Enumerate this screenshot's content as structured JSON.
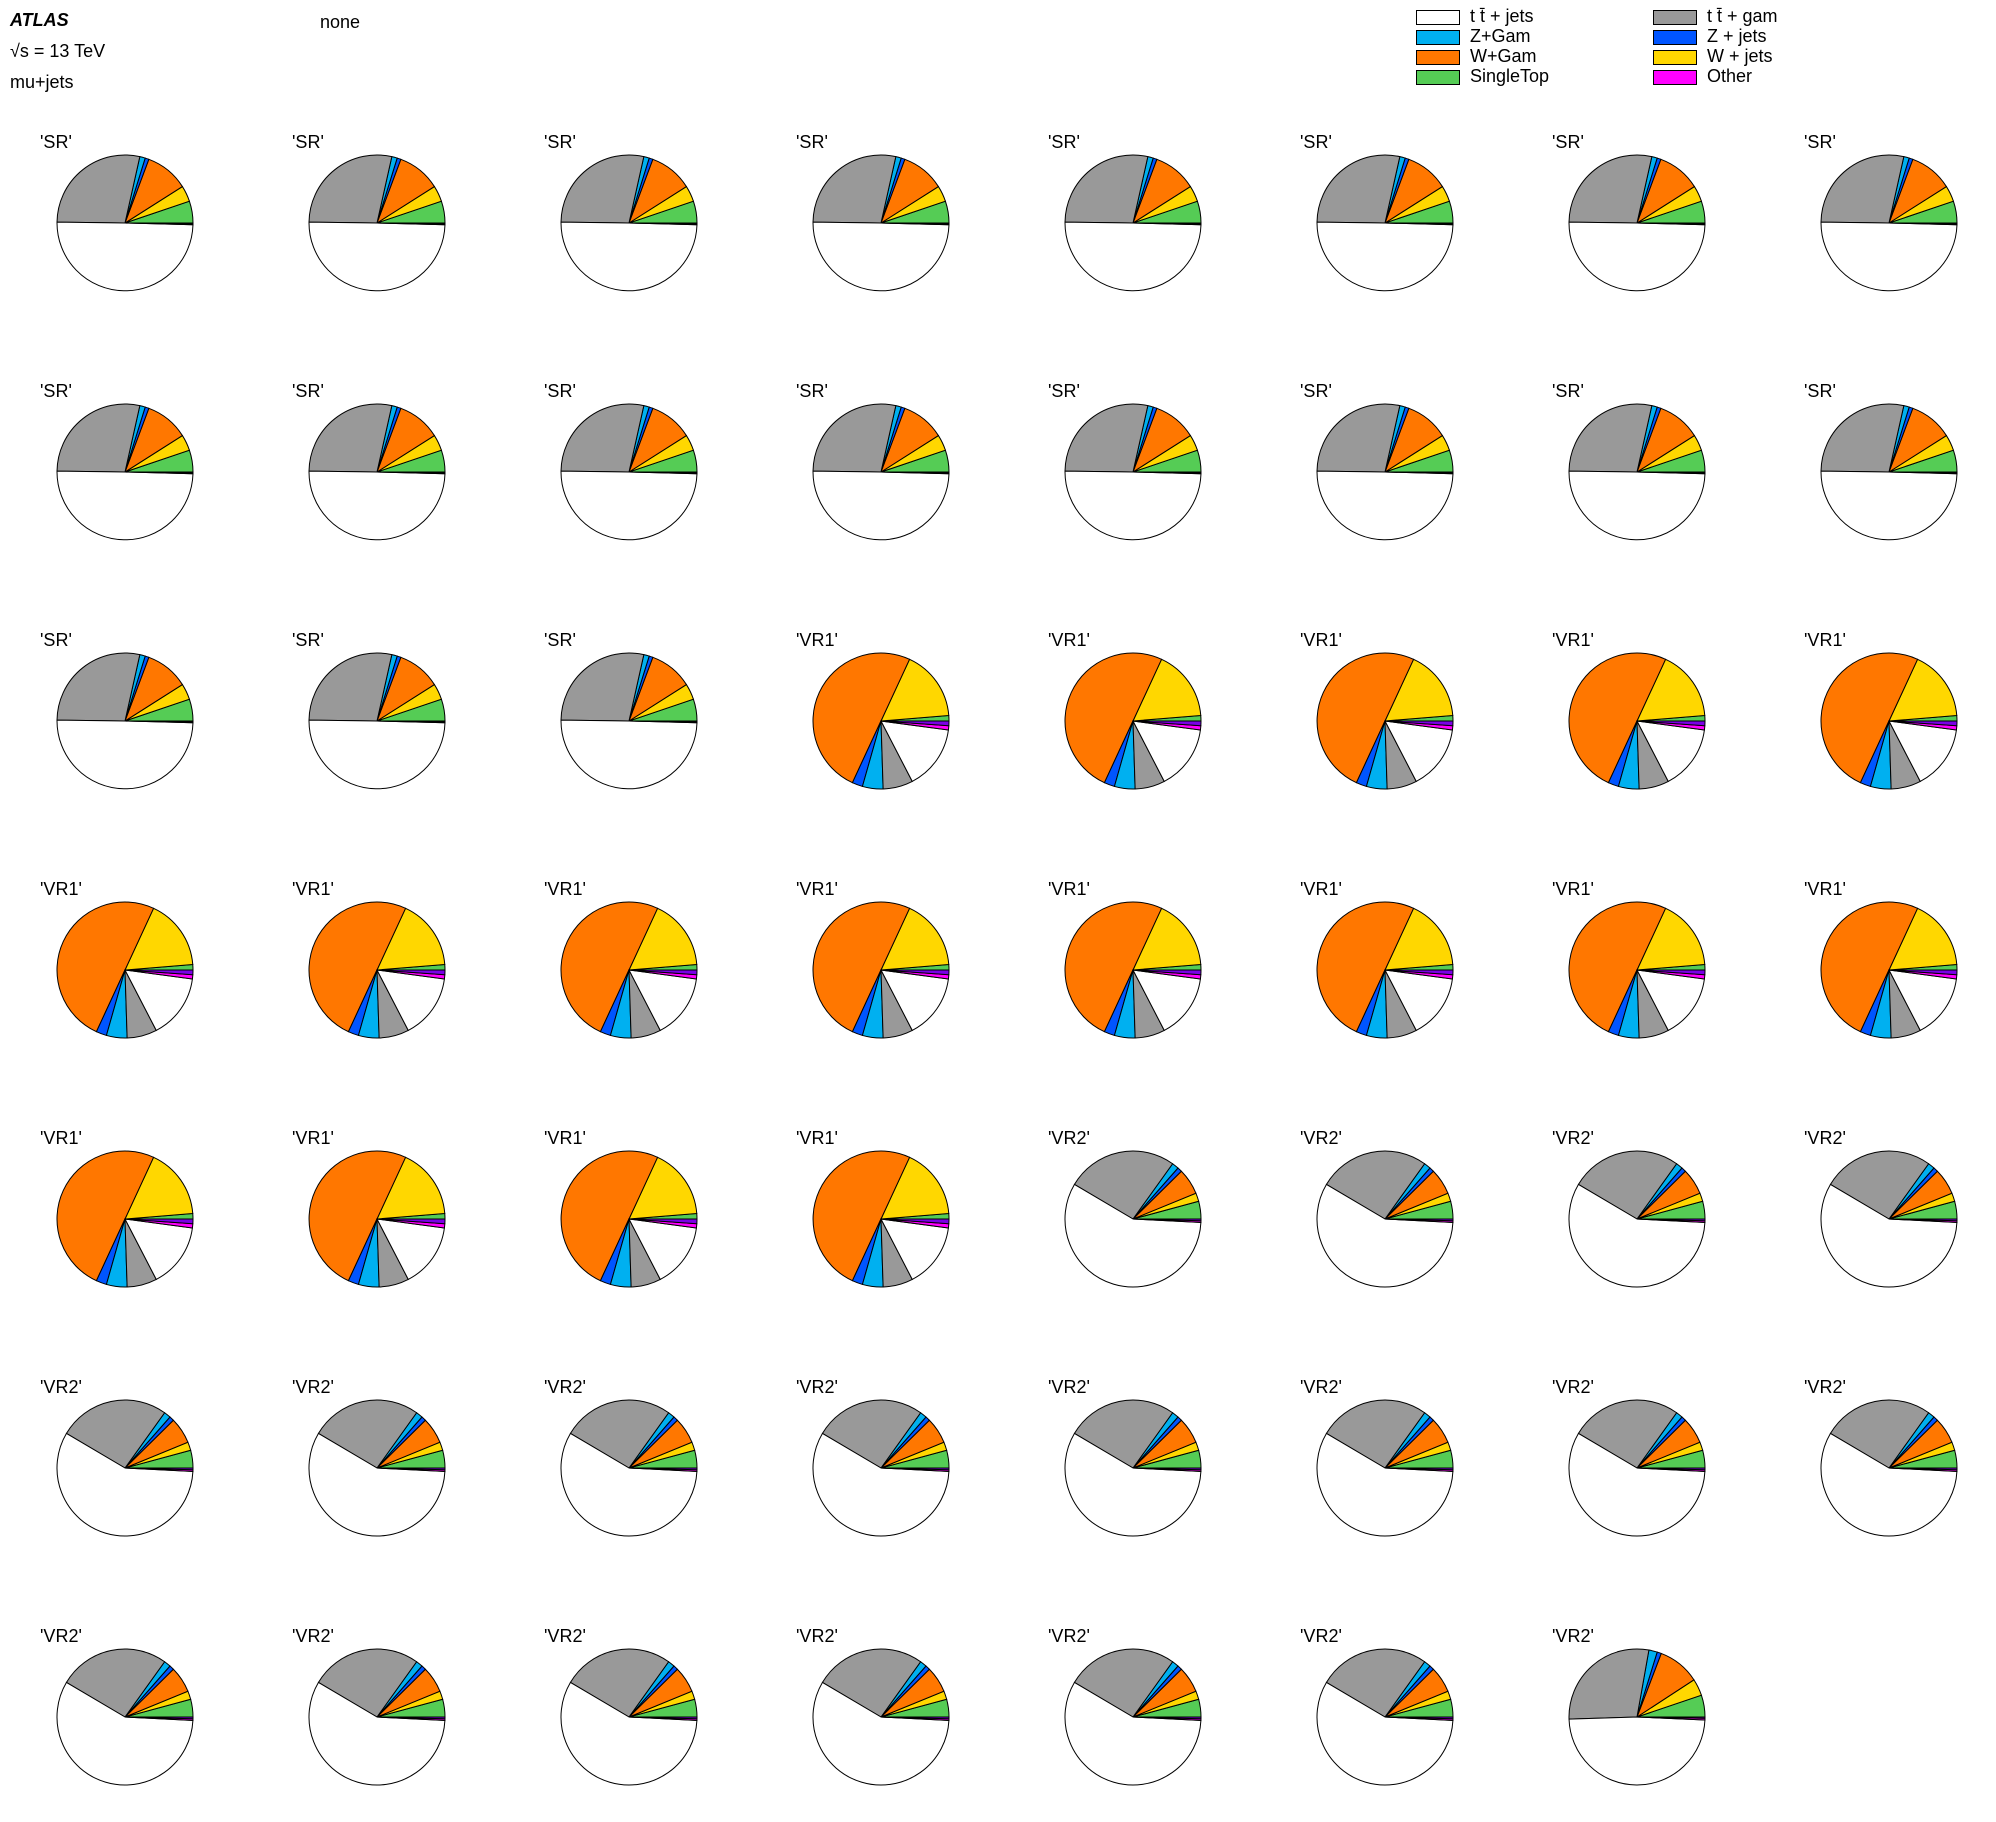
{
  "header": {
    "atlas": "ATLAS",
    "energy": "√s = 13 TeV",
    "channel": "mu+jets",
    "normalization": "none"
  },
  "legend": [
    {
      "label": "t t̄ + jets",
      "color": "#ffffff"
    },
    {
      "label": "t t̄ +  gam",
      "color": "#999999"
    },
    {
      "label": "Z+Gam",
      "color": "#00b0f0"
    },
    {
      "label": "Z + jets",
      "color": "#0055ff"
    },
    {
      "label": "W+Gam",
      "color": "#ff7700"
    },
    {
      "label": "W + jets",
      "color": "#ffd700"
    },
    {
      "label": "SingleTop",
      "color": "#55cc55"
    },
    {
      "label": "Other",
      "color": "#ff00ff"
    }
  ],
  "chart_data": {
    "type": "pie",
    "slice_order": [
      "SingleTop",
      "W + jets",
      "W+Gam",
      "Z + jets",
      "Z+Gam",
      "t t̄ +  gam",
      "t t̄ + jets",
      "Other",
      "Diboson"
    ],
    "slice_colors": [
      "#55cc55",
      "#ffd700",
      "#ff7700",
      "#0055ff",
      "#00b0f0",
      "#999999",
      "#ffffff",
      "#ff00ff",
      "#7a00e6"
    ],
    "profiles": {
      "SR": [
        0.052,
        0.038,
        0.103,
        0.009,
        0.013,
        0.283,
        0.498,
        0.002,
        0.002
      ],
      "VR1": [
        0.013,
        0.168,
        0.5,
        0.025,
        0.049,
        0.071,
        0.153,
        0.01,
        0.011
      ],
      "VR2": [
        0.042,
        0.02,
        0.062,
        0.011,
        0.016,
        0.264,
        0.577,
        0.004,
        0.004
      ],
      "VR2_last": [
        0.052,
        0.04,
        0.1,
        0.01,
        0.02,
        0.283,
        0.488,
        0.004,
        0.003
      ]
    },
    "pies": [
      {
        "title": "'SR'",
        "profile": "SR"
      },
      {
        "title": "'SR'",
        "profile": "SR"
      },
      {
        "title": "'SR'",
        "profile": "SR"
      },
      {
        "title": "'SR'",
        "profile": "SR"
      },
      {
        "title": "'SR'",
        "profile": "SR"
      },
      {
        "title": "'SR'",
        "profile": "SR"
      },
      {
        "title": "'SR'",
        "profile": "SR"
      },
      {
        "title": "'SR'",
        "profile": "SR"
      },
      {
        "title": "'SR'",
        "profile": "SR"
      },
      {
        "title": "'SR'",
        "profile": "SR"
      },
      {
        "title": "'SR'",
        "profile": "SR"
      },
      {
        "title": "'SR'",
        "profile": "SR"
      },
      {
        "title": "'SR'",
        "profile": "SR"
      },
      {
        "title": "'SR'",
        "profile": "SR"
      },
      {
        "title": "'SR'",
        "profile": "SR"
      },
      {
        "title": "'SR'",
        "profile": "SR"
      },
      {
        "title": "'SR'",
        "profile": "SR"
      },
      {
        "title": "'SR'",
        "profile": "SR"
      },
      {
        "title": "'SR'",
        "profile": "SR"
      },
      {
        "title": "'VR1'",
        "profile": "VR1"
      },
      {
        "title": "'VR1'",
        "profile": "VR1"
      },
      {
        "title": "'VR1'",
        "profile": "VR1"
      },
      {
        "title": "'VR1'",
        "profile": "VR1"
      },
      {
        "title": "'VR1'",
        "profile": "VR1"
      },
      {
        "title": "'VR1'",
        "profile": "VR1"
      },
      {
        "title": "'VR1'",
        "profile": "VR1"
      },
      {
        "title": "'VR1'",
        "profile": "VR1"
      },
      {
        "title": "'VR1'",
        "profile": "VR1"
      },
      {
        "title": "'VR1'",
        "profile": "VR1"
      },
      {
        "title": "'VR1'",
        "profile": "VR1"
      },
      {
        "title": "'VR1'",
        "profile": "VR1"
      },
      {
        "title": "'VR1'",
        "profile": "VR1"
      },
      {
        "title": "'VR1'",
        "profile": "VR1"
      },
      {
        "title": "'VR1'",
        "profile": "VR1"
      },
      {
        "title": "'VR1'",
        "profile": "VR1"
      },
      {
        "title": "'VR1'",
        "profile": "VR1"
      },
      {
        "title": "'VR2'",
        "profile": "VR2"
      },
      {
        "title": "'VR2'",
        "profile": "VR2"
      },
      {
        "title": "'VR2'",
        "profile": "VR2"
      },
      {
        "title": "'VR2'",
        "profile": "VR2"
      },
      {
        "title": "'VR2'",
        "profile": "VR2"
      },
      {
        "title": "'VR2'",
        "profile": "VR2"
      },
      {
        "title": "'VR2'",
        "profile": "VR2"
      },
      {
        "title": "'VR2'",
        "profile": "VR2"
      },
      {
        "title": "'VR2'",
        "profile": "VR2"
      },
      {
        "title": "'VR2'",
        "profile": "VR2"
      },
      {
        "title": "'VR2'",
        "profile": "VR2"
      },
      {
        "title": "'VR2'",
        "profile": "VR2"
      },
      {
        "title": "'VR2'",
        "profile": "VR2"
      },
      {
        "title": "'VR2'",
        "profile": "VR2"
      },
      {
        "title": "'VR2'",
        "profile": "VR2"
      },
      {
        "title": "'VR2'",
        "profile": "VR2"
      },
      {
        "title": "'VR2'",
        "profile": "VR2"
      },
      {
        "title": "'VR2'",
        "profile": "VR2"
      },
      {
        "title": "'VR2'",
        "profile": "VR2_last"
      }
    ]
  }
}
